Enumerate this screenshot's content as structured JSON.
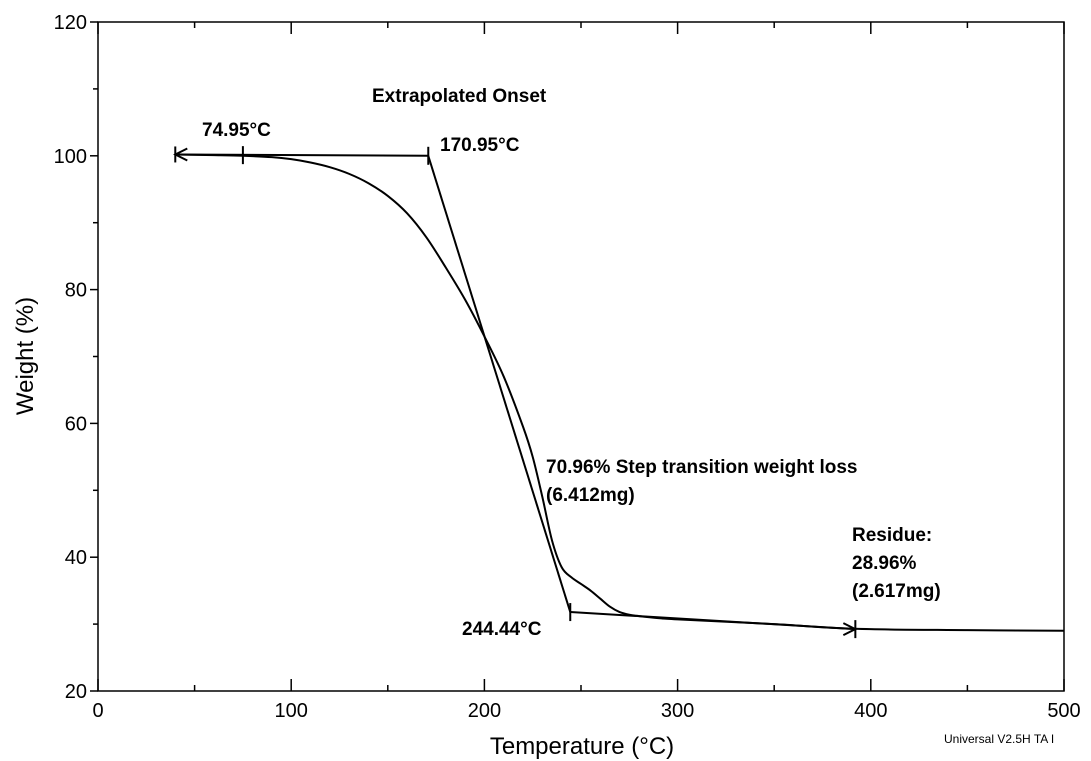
{
  "chart_data": {
    "type": "line",
    "title": "",
    "xlabel": "Temperature (°C)",
    "ylabel": "Weight (%)",
    "xlim": [
      0,
      500
    ],
    "ylim": [
      20,
      120
    ],
    "xticks": [
      0,
      100,
      200,
      300,
      400,
      500
    ],
    "yticks": [
      20,
      40,
      60,
      80,
      100,
      120
    ],
    "grid": false,
    "series": [
      {
        "name": "",
        "x": [
          40,
          60,
          75,
          90,
          100,
          110,
          120,
          130,
          140,
          150,
          160,
          170,
          180,
          190,
          200,
          210,
          220,
          225,
          230,
          235,
          240,
          245,
          250,
          255,
          260,
          265,
          270,
          275,
          280,
          290,
          300,
          350,
          392,
          450,
          500
        ],
        "y": [
          100.2,
          100.1,
          100.0,
          99.8,
          99.5,
          99.0,
          98.3,
          97.3,
          95.9,
          94.0,
          91.4,
          87.8,
          83.3,
          78.5,
          73.0,
          67.0,
          59.5,
          55.0,
          49.0,
          42.5,
          38.5,
          37.0,
          36.0,
          35.0,
          33.8,
          32.6,
          31.8,
          31.4,
          31.2,
          30.9,
          30.7,
          30.0,
          29.3,
          29.1,
          29.0
        ]
      }
    ],
    "constructions": {
      "baseline": {
        "x": [
          40,
          170.95
        ],
        "y": [
          100.2,
          100.0
        ]
      },
      "tangent": {
        "x": [
          170.95,
          244.44
        ],
        "y": [
          100.0,
          31.8
        ]
      },
      "residue_line": {
        "x": [
          244.44,
          392
        ],
        "y": [
          31.8,
          29.25
        ]
      },
      "markers": [
        {
          "x": 75,
          "y": 100.1
        },
        {
          "x": 170.95,
          "y": 100.0
        },
        {
          "x": 244.44,
          "y": 31.8
        },
        {
          "x": 392,
          "y": 29.25
        }
      ]
    },
    "annotations": {
      "onset_title": "Extrapolated Onset",
      "start_temp": "74.95°C",
      "onset_temp": "170.95°C",
      "step_loss": "70.96% Step transition weight loss",
      "step_mass": "(6.412mg)",
      "end_temp": "244.44°C",
      "residue_label": "Residue:",
      "residue_pct": "28.96%",
      "residue_mass": "(2.617mg)"
    },
    "footer": "Universal V2.5H TA I"
  }
}
